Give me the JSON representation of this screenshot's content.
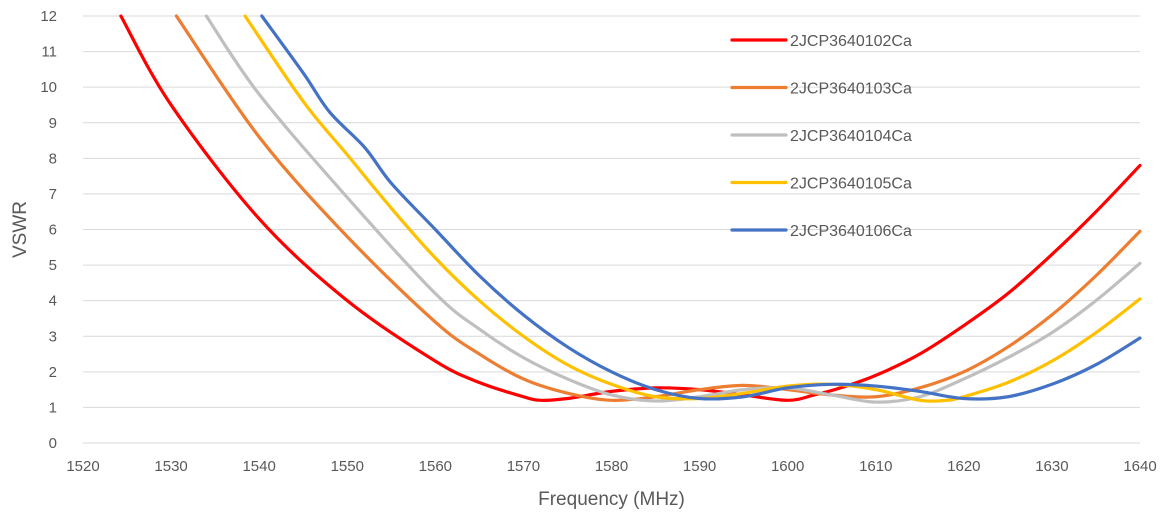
{
  "chart_data": {
    "type": "line",
    "title": "",
    "xlabel": "Frequency (MHz)",
    "ylabel": "VSWR",
    "xlim": [
      1520,
      1640
    ],
    "ylim": [
      0,
      12
    ],
    "x_ticks": [
      1520,
      1530,
      1540,
      1550,
      1560,
      1570,
      1580,
      1590,
      1600,
      1610,
      1620,
      1630,
      1640
    ],
    "y_ticks": [
      0,
      1,
      2,
      3,
      4,
      5,
      6,
      7,
      8,
      9,
      10,
      11,
      12
    ],
    "grid": "horizontal",
    "legend_position": "top-right",
    "series": [
      {
        "name": "2JCP3640102Ca",
        "color": "#ff0000",
        "points": [
          [
            1524.3,
            12
          ],
          [
            1530,
            9.5
          ],
          [
            1540,
            6.3
          ],
          [
            1550,
            4.0
          ],
          [
            1560,
            2.3
          ],
          [
            1565,
            1.7
          ],
          [
            1570,
            1.3
          ],
          [
            1572,
            1.2
          ],
          [
            1575,
            1.25
          ],
          [
            1580,
            1.45
          ],
          [
            1585,
            1.55
          ],
          [
            1590,
            1.5
          ],
          [
            1595,
            1.35
          ],
          [
            1600,
            1.2
          ],
          [
            1603,
            1.35
          ],
          [
            1606,
            1.55
          ],
          [
            1610,
            1.9
          ],
          [
            1615,
            2.5
          ],
          [
            1620,
            3.3
          ],
          [
            1625,
            4.2
          ],
          [
            1630,
            5.3
          ],
          [
            1635,
            6.5
          ],
          [
            1640,
            7.8
          ]
        ]
      },
      {
        "name": "2JCP3640103Ca",
        "color": "#ed7d31",
        "points": [
          [
            1530.6,
            12
          ],
          [
            1540,
            8.6
          ],
          [
            1550,
            5.8
          ],
          [
            1560,
            3.4
          ],
          [
            1565,
            2.5
          ],
          [
            1570,
            1.8
          ],
          [
            1575,
            1.4
          ],
          [
            1580,
            1.2
          ],
          [
            1585,
            1.3
          ],
          [
            1590,
            1.5
          ],
          [
            1595,
            1.62
          ],
          [
            1600,
            1.5
          ],
          [
            1605,
            1.35
          ],
          [
            1610,
            1.3
          ],
          [
            1615,
            1.55
          ],
          [
            1620,
            2.0
          ],
          [
            1625,
            2.7
          ],
          [
            1630,
            3.6
          ],
          [
            1635,
            4.7
          ],
          [
            1640,
            5.95
          ]
        ]
      },
      {
        "name": "2JCP3640104Ca",
        "color": "#bfbfbf",
        "points": [
          [
            1534,
            12
          ],
          [
            1540,
            9.8
          ],
          [
            1550,
            6.9
          ],
          [
            1560,
            4.2
          ],
          [
            1565,
            3.2
          ],
          [
            1570,
            2.4
          ],
          [
            1575,
            1.8
          ],
          [
            1580,
            1.35
          ],
          [
            1585,
            1.18
          ],
          [
            1590,
            1.3
          ],
          [
            1595,
            1.5
          ],
          [
            1600,
            1.55
          ],
          [
            1605,
            1.35
          ],
          [
            1610,
            1.15
          ],
          [
            1615,
            1.3
          ],
          [
            1620,
            1.8
          ],
          [
            1625,
            2.4
          ],
          [
            1630,
            3.1
          ],
          [
            1635,
            4.0
          ],
          [
            1640,
            5.05
          ]
        ]
      },
      {
        "name": "2JCP3640105Ca",
        "color": "#ffc000",
        "points": [
          [
            1538.4,
            12
          ],
          [
            1545,
            9.6
          ],
          [
            1550,
            8.1
          ],
          [
            1555,
            6.6
          ],
          [
            1560,
            5.2
          ],
          [
            1565,
            4.0
          ],
          [
            1570,
            3.0
          ],
          [
            1575,
            2.2
          ],
          [
            1580,
            1.65
          ],
          [
            1585,
            1.3
          ],
          [
            1590,
            1.25
          ],
          [
            1595,
            1.4
          ],
          [
            1600,
            1.6
          ],
          [
            1605,
            1.65
          ],
          [
            1610,
            1.5
          ],
          [
            1615,
            1.2
          ],
          [
            1618,
            1.2
          ],
          [
            1620,
            1.3
          ],
          [
            1625,
            1.7
          ],
          [
            1630,
            2.3
          ],
          [
            1635,
            3.1
          ],
          [
            1640,
            4.05
          ]
        ]
      },
      {
        "name": "2JCP3640106Ca",
        "color": "#4472c4",
        "points": [
          [
            1540.3,
            12
          ],
          [
            1545,
            10.4
          ],
          [
            1548,
            9.3
          ],
          [
            1552,
            8.3
          ],
          [
            1555,
            7.3
          ],
          [
            1560,
            6.0
          ],
          [
            1565,
            4.7
          ],
          [
            1570,
            3.6
          ],
          [
            1575,
            2.7
          ],
          [
            1580,
            2.0
          ],
          [
            1585,
            1.5
          ],
          [
            1590,
            1.25
          ],
          [
            1595,
            1.3
          ],
          [
            1600,
            1.55
          ],
          [
            1605,
            1.65
          ],
          [
            1610,
            1.6
          ],
          [
            1615,
            1.45
          ],
          [
            1620,
            1.25
          ],
          [
            1625,
            1.3
          ],
          [
            1630,
            1.65
          ],
          [
            1635,
            2.2
          ],
          [
            1640,
            2.95
          ]
        ]
      }
    ]
  }
}
